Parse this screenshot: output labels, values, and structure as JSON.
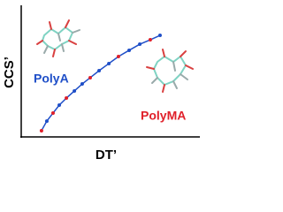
{
  "chart_data": {
    "type": "line",
    "x_label": "DT’",
    "y_label": "CCS’",
    "xlim": [
      0,
      100
    ],
    "ylim": [
      0,
      100
    ],
    "series": [
      {
        "color": "#1f4fc8",
        "x": [
          11.4,
          14.4,
          17.9,
          21.4,
          25.4,
          29.9,
          34.3,
          38.8,
          43.8,
          49.3,
          54.7,
          60.7,
          66.7,
          72.6,
          78.1
        ],
        "values": [
          4.8,
          12.2,
          18.4,
          24.5,
          29.9,
          35.4,
          40.8,
          45.6,
          51.0,
          56.5,
          61.9,
          66.7,
          71.4,
          74.8,
          78.2
        ],
        "marker_colors": [
          "#e0202a",
          "#1f4fc8",
          "#e0202a",
          "#1f4fc8",
          "#e0202a",
          "#1f4fc8",
          "#1f4fc8",
          "#e0202a",
          "#1f4fc8",
          "#1f4fc8",
          "#e0202a",
          "#1f4fc8",
          "#1f4fc8",
          "#e0202a",
          "#1f4fc8"
        ]
      }
    ],
    "annotations": [
      {
        "text": "PolyA",
        "color": "#1f4fc8"
      },
      {
        "text": "PolyMA",
        "color": "#e0202a"
      }
    ]
  }
}
